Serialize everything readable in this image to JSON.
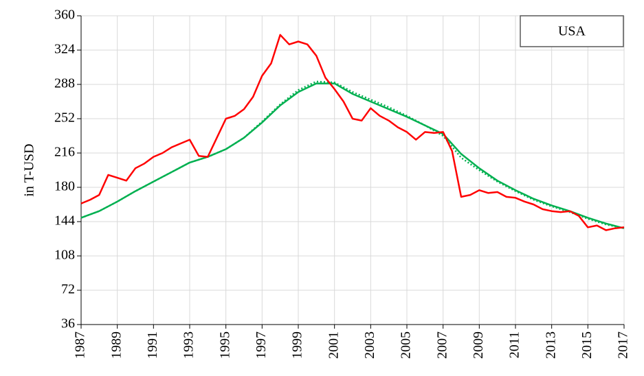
{
  "chart_data": {
    "type": "line",
    "y_label": "in T-USD",
    "annotation": "USA",
    "xlim": [
      1987,
      2017
    ],
    "xticks": [
      1987,
      1989,
      1991,
      1993,
      1995,
      1997,
      1999,
      2001,
      2003,
      2005,
      2007,
      2009,
      2011,
      2013,
      2015,
      2017
    ],
    "ylim": [
      36,
      360
    ],
    "yticks": [
      36,
      72,
      108,
      144,
      180,
      216,
      252,
      288,
      324,
      360
    ],
    "grid": true,
    "series": [
      {
        "color": "#ff0000",
        "dash": "solid",
        "x": [
          1987,
          1987.5,
          1988,
          1988.5,
          1989,
          1989.5,
          1990,
          1990.5,
          1991,
          1991.5,
          1992,
          1992.5,
          1993,
          1993.5,
          1994,
          1994.5,
          1995,
          1995.5,
          1996,
          1996.5,
          1997,
          1997.5,
          1998,
          1998.5,
          1999,
          1999.5,
          2000,
          2000.5,
          2001,
          2001.5,
          2002,
          2002.5,
          2003,
          2003.5,
          2004,
          2004.5,
          2005,
          2005.5,
          2006,
          2006.5,
          2007,
          2007.5,
          2008,
          2008.5,
          2009,
          2009.5,
          2010,
          2010.5,
          2011,
          2011.5,
          2012,
          2012.5,
          2013,
          2013.5,
          2014,
          2014.5,
          2015,
          2015.5,
          2016,
          2016.5,
          2017
        ],
        "values": [
          163,
          167,
          172,
          193,
          190,
          187,
          200,
          205,
          212,
          216,
          222,
          226,
          230,
          213,
          212,
          232,
          252,
          255,
          262,
          275,
          297,
          310,
          340,
          330,
          333,
          330,
          318,
          295,
          283,
          270,
          252,
          250,
          263,
          255,
          250,
          243,
          238,
          230,
          238,
          237,
          238,
          218,
          170,
          172,
          177,
          174,
          175,
          170,
          169,
          165,
          162,
          157,
          155,
          154,
          155,
          150,
          138,
          140,
          135,
          137,
          138
        ]
      },
      {
        "color": "#00b050",
        "dash": "solid",
        "x": [
          1987,
          1988,
          1989,
          1990,
          1991,
          1992,
          1993,
          1994,
          1995,
          1996,
          1997,
          1998,
          1999,
          2000,
          2001,
          2002,
          2003,
          2004,
          2005,
          2006,
          2007,
          2008,
          2009,
          2010,
          2011,
          2012,
          2013,
          2014,
          2015,
          2016,
          2017
        ],
        "values": [
          148,
          155,
          165,
          176,
          186,
          196,
          206,
          212,
          220,
          232,
          248,
          266,
          280,
          289,
          289,
          278,
          270,
          262,
          254,
          245,
          236,
          215,
          200,
          187,
          177,
          168,
          161,
          155,
          148,
          142,
          137
        ]
      },
      {
        "color": "#00b050",
        "dash": "dot",
        "x": [
          1987,
          1988,
          1989,
          1990,
          1991,
          1992,
          1993,
          1994,
          1995,
          1996,
          1997,
          1998,
          1999,
          2000,
          2001,
          2002,
          2003,
          2004,
          2005,
          2006,
          2007,
          2008,
          2009,
          2010,
          2011,
          2012,
          2013,
          2014,
          2015,
          2016,
          2017
        ],
        "values": [
          148,
          155,
          165,
          176,
          186,
          196,
          206,
          212,
          220,
          232,
          249,
          267,
          282,
          291,
          290,
          280,
          272,
          264,
          255,
          245,
          234,
          211,
          198,
          186,
          176,
          167,
          160,
          154,
          147,
          141,
          137
        ]
      }
    ]
  }
}
